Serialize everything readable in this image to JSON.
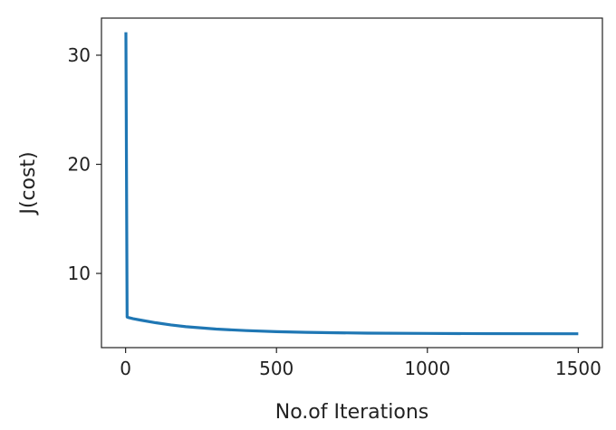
{
  "chart_data": {
    "type": "line",
    "title": "",
    "xlabel": "No.of Iterations",
    "ylabel": "J(cost)",
    "xlim": [
      -80,
      1580
    ],
    "ylim": [
      3.2,
      33.4
    ],
    "xticks": [
      0,
      500,
      1000,
      1500
    ],
    "xtick_labels": [
      "0",
      "500",
      "1000",
      "1500"
    ],
    "yticks": [
      10,
      20,
      30
    ],
    "ytick_labels": [
      "10",
      "20",
      "30"
    ],
    "grid": false,
    "legend": "none",
    "series": [
      {
        "color": "#1f77b4",
        "x": [
          1,
          5,
          10,
          25,
          50,
          100,
          150,
          200,
          300,
          400,
          500,
          600,
          700,
          800,
          1000,
          1200,
          1500
        ],
        "y": [
          32.1,
          6.0,
          5.95,
          5.85,
          5.72,
          5.48,
          5.28,
          5.12,
          4.9,
          4.76,
          4.66,
          4.6,
          4.56,
          4.53,
          4.5,
          4.48,
          4.47
        ]
      }
    ]
  }
}
